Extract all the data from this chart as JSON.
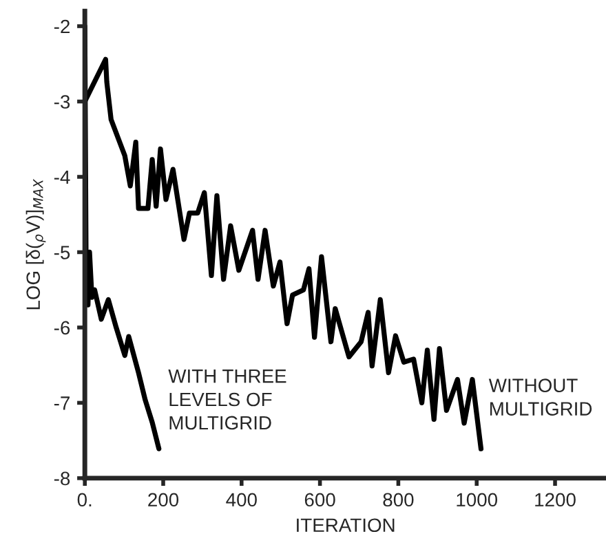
{
  "chart_data": {
    "type": "line",
    "xlabel": "ITERATION",
    "ylabel": "LOG [δ($_{ρ}$V)]$_{MAX}$",
    "xlim": [
      0,
      1330
    ],
    "ylim": [
      -8,
      -1.8
    ],
    "xticks": [
      {
        "value": 0,
        "label": "0."
      },
      200,
      400,
      600,
      800,
      1000,
      1200
    ],
    "yticks": [
      -8,
      -7,
      -6,
      -5,
      -4,
      -3,
      -2
    ],
    "grid": false,
    "legend": false,
    "marker": "none",
    "line_style": "solid",
    "series": [
      {
        "color": "#000000",
        "x": [
          0,
          53,
          56,
          67,
          102,
          116,
          130,
          137,
          161,
          172,
          182,
          193,
          207,
          225,
          253,
          267,
          288,
          305,
          323,
          337,
          354,
          372,
          393,
          428,
          442,
          460,
          481,
          498,
          516,
          530,
          558,
          572,
          586,
          604,
          628,
          639,
          674,
          705,
          723,
          733,
          754,
          775,
          793,
          814,
          839,
          860,
          874,
          891,
          905,
          923,
          951,
          968,
          989,
          1011
        ],
        "values": [
          -3.0,
          -2.44,
          -2.74,
          -3.24,
          -3.72,
          -4.12,
          -3.54,
          -4.42,
          -4.42,
          -3.77,
          -4.39,
          -3.63,
          -4.3,
          -3.9,
          -4.83,
          -4.48,
          -4.48,
          -4.21,
          -5.31,
          -4.25,
          -5.36,
          -4.65,
          -5.24,
          -4.71,
          -5.36,
          -4.71,
          -5.45,
          -5.13,
          -5.95,
          -5.57,
          -5.5,
          -5.22,
          -6.13,
          -5.06,
          -6.19,
          -5.75,
          -6.39,
          -6.19,
          -5.8,
          -6.51,
          -5.63,
          -6.6,
          -6.11,
          -6.46,
          -6.42,
          -7.0,
          -6.3,
          -7.22,
          -6.28,
          -7.1,
          -6.69,
          -7.27,
          -6.69,
          -7.61
        ]
      },
      {
        "color": "#000000",
        "x": [
          0,
          3,
          8,
          12,
          18,
          25,
          42,
          60,
          80,
          102,
          112,
          137,
          154,
          172,
          189
        ],
        "values": [
          -2.0,
          -5.0,
          -5.7,
          -5.0,
          -5.6,
          -5.5,
          -5.89,
          -5.63,
          -6.0,
          -6.37,
          -6.12,
          -6.6,
          -6.96,
          -7.26,
          -7.61
        ]
      }
    ],
    "annotations": [
      "WITH THREE\nLEVELS OF\nMULTIGRID",
      "WITHOUT\nMULTIGRID"
    ]
  }
}
